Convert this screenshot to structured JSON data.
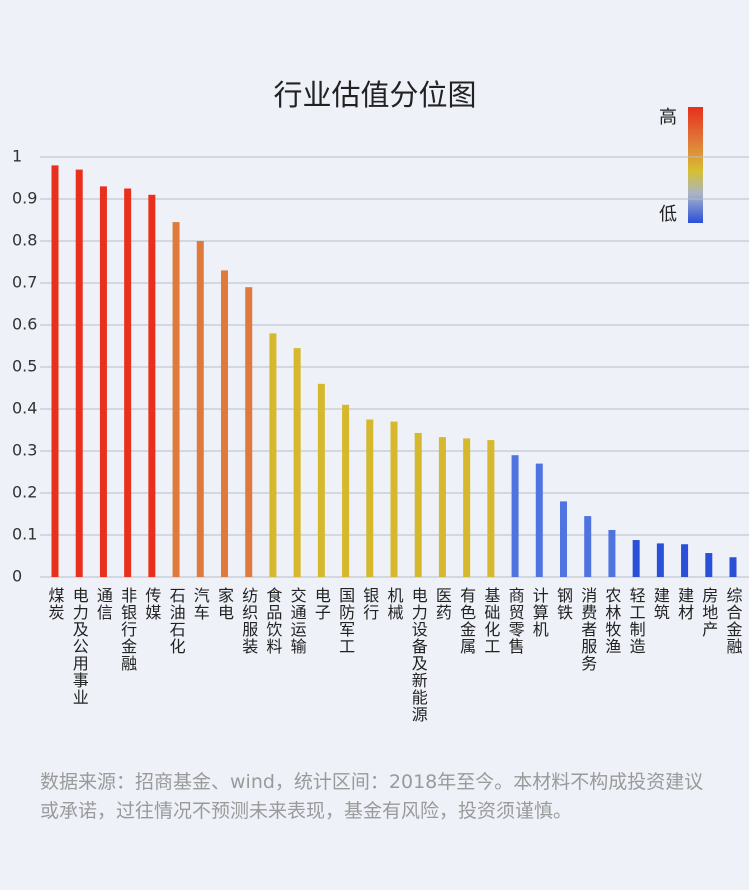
{
  "chart_data": {
    "type": "bar",
    "title": "行业估值分位图",
    "categories": [
      "煤炭",
      "电力及公用事业",
      "通信",
      "非银行金融",
      "传媒",
      "石油石化",
      "汽车",
      "家电",
      "纺织服装",
      "食品饮料",
      "交通运输",
      "电子",
      "国防军工",
      "银行",
      "机械",
      "电力设备及新能源",
      "医药",
      "有色金属",
      "基础化工",
      "商贸零售",
      "计算机",
      "钢铁",
      "消费者服务",
      "农林牧渔",
      "轻工制造",
      "建筑",
      "建材",
      "房地产",
      "综合金融"
    ],
    "values": [
      0.98,
      0.97,
      0.93,
      0.925,
      0.91,
      0.845,
      0.8,
      0.73,
      0.69,
      0.58,
      0.545,
      0.46,
      0.41,
      0.375,
      0.37,
      0.343,
      0.333,
      0.33,
      0.326,
      0.29,
      0.27,
      0.18,
      0.145,
      0.112,
      0.088,
      0.08,
      0.078,
      0.057,
      0.047
    ],
    "colors": [
      "#e8301c",
      "#e8301c",
      "#e8301c",
      "#e8301c",
      "#e8301c",
      "#e07a3a",
      "#e07a3a",
      "#e07a3a",
      "#e07a3a",
      "#d6b82c",
      "#d6b82c",
      "#d6b82c",
      "#d6b82c",
      "#d6b82c",
      "#d6b82c",
      "#d6b82c",
      "#d6b82c",
      "#d6b82c",
      "#d6b82c",
      "#4f74e0",
      "#4f74e0",
      "#4f74e0",
      "#4f74e0",
      "#4f74e0",
      "#2a4fd8",
      "#2a4fd8",
      "#2a4fd8",
      "#2a4fd8",
      "#2a4fd8"
    ],
    "ylim": [
      0,
      1
    ],
    "yticks": [
      0,
      0.1,
      0.2,
      0.3,
      0.4,
      0.5,
      0.6,
      0.7,
      0.8,
      0.9,
      1
    ],
    "grid": true,
    "legend": {
      "high": "高",
      "low": "低"
    },
    "note": "数据来源：招商基金、wind，统计区间：2018年至今。本材料不构成投资建议或承诺，过往情况不预测未来表现，基金有风险，投资须谨慎。"
  }
}
